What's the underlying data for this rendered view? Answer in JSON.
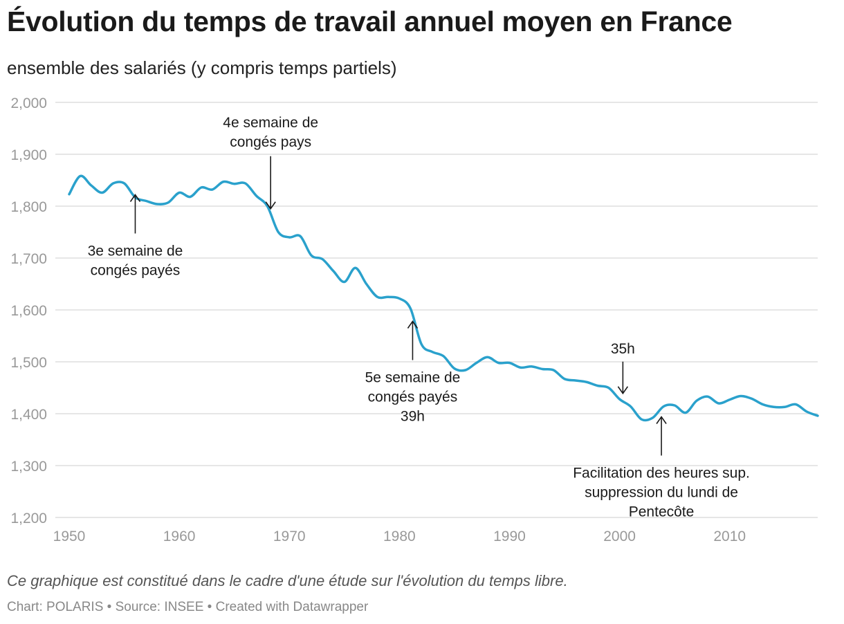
{
  "title": "Évolution du temps de travail annuel moyen en France",
  "subtitle": "ensemble des salariés (y compris temps partiels)",
  "note": "Ce graphique est constitué dans le cadre d'une étude sur l'évolution du temps libre.",
  "footer": {
    "chart_credit": "Chart: POLARIS",
    "source": "Source: INSEE",
    "tool": "Created with Datawrapper",
    "separator": "•"
  },
  "colors": {
    "line": "#2aa1cc",
    "grid": "#dddddd",
    "axis_text": "#999999",
    "annotation": "#1a1a1a"
  },
  "chart_data": {
    "type": "line",
    "title": "Évolution du temps de travail annuel moyen en France",
    "xlabel": "",
    "ylabel": "",
    "xlim": [
      1950,
      2018
    ],
    "ylim": [
      1200,
      2000
    ],
    "x_ticks": [
      1950,
      1960,
      1970,
      1980,
      1990,
      2000,
      2010
    ],
    "y_ticks": [
      1200,
      1300,
      1400,
      1500,
      1600,
      1700,
      1800,
      1900,
      2000
    ],
    "y_tick_labels": [
      "1,200",
      "1,300",
      "1,400",
      "1,500",
      "1,600",
      "1,700",
      "1,800",
      "1,900",
      "2,000"
    ],
    "grid": true,
    "series": [
      {
        "name": "Temps de travail annuel moyen",
        "x": [
          1950,
          1951,
          1952,
          1953,
          1954,
          1955,
          1956,
          1957,
          1958,
          1959,
          1960,
          1961,
          1962,
          1963,
          1964,
          1965,
          1966,
          1967,
          1968,
          1969,
          1970,
          1971,
          1972,
          1973,
          1974,
          1975,
          1976,
          1977,
          1978,
          1979,
          1980,
          1981,
          1982,
          1983,
          1984,
          1985,
          1986,
          1987,
          1988,
          1989,
          1990,
          1991,
          1992,
          1993,
          1994,
          1995,
          1996,
          1997,
          1998,
          1999,
          2000,
          2001,
          2002,
          2003,
          2004,
          2005,
          2006,
          2007,
          2008,
          2009,
          2010,
          2011,
          2012,
          2013,
          2014,
          2015,
          2016,
          2017,
          2018
        ],
        "values": [
          1823,
          1858,
          1840,
          1826,
          1844,
          1844,
          1817,
          1810,
          1804,
          1807,
          1826,
          1818,
          1836,
          1832,
          1847,
          1843,
          1844,
          1820,
          1800,
          1750,
          1740,
          1742,
          1705,
          1698,
          1675,
          1654,
          1681,
          1650,
          1625,
          1625,
          1622,
          1603,
          1534,
          1519,
          1511,
          1487,
          1484,
          1498,
          1509,
          1498,
          1498,
          1489,
          1491,
          1486,
          1484,
          1467,
          1464,
          1461,
          1454,
          1450,
          1428,
          1414,
          1389,
          1392,
          1414,
          1416,
          1402,
          1425,
          1433,
          1420,
          1427,
          1434,
          1429,
          1418,
          1413,
          1413,
          1418,
          1404,
          1396
        ]
      }
    ],
    "annotations": [
      {
        "text_lines": [
          "3e semaine de",
          "congés payés"
        ],
        "x": 1956,
        "y": 1822,
        "direction": "up"
      },
      {
        "text_lines": [
          "4e semaine de",
          "congés pays"
        ],
        "x": 1968.3,
        "y": 1795,
        "direction": "down"
      },
      {
        "text_lines": [
          "5e semaine de",
          "congés payés",
          "39h"
        ],
        "x": 1981.2,
        "y": 1578,
        "direction": "up"
      },
      {
        "text_lines": [
          "35h"
        ],
        "x": 2000.3,
        "y": 1439,
        "direction": "down"
      },
      {
        "text_lines": [
          "Facilitation des heures sup.",
          "suppression du lundi de",
          "Pentecôte"
        ],
        "x": 2003.8,
        "y": 1394,
        "direction": "up"
      }
    ]
  }
}
